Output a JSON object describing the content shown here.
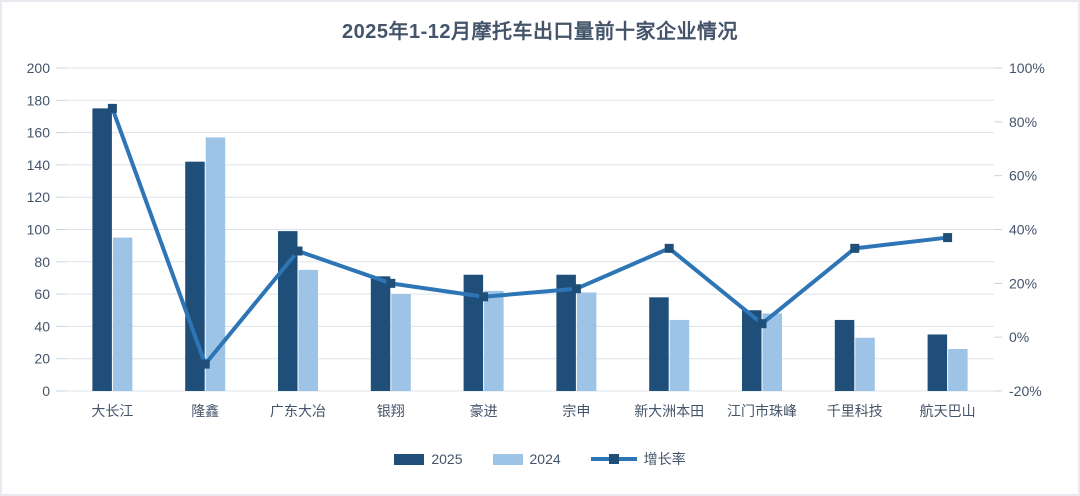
{
  "window": {
    "background": "#ffffff",
    "border_color": "#e7ebf0"
  },
  "chart_data": {
    "type": "bar",
    "subtype": "combo-bar-line",
    "title": "2025年1-12月摩托车出口量前十家企业情况",
    "categories": [
      "大长江",
      "隆鑫",
      "广东大冶",
      "银翔",
      "豪进",
      "宗申",
      "新大洲本田",
      "江门市珠峰",
      "千里科技",
      "航天巴山"
    ],
    "series": [
      {
        "name": "2025",
        "type": "bar",
        "axis": "left",
        "color": "#1F4E79",
        "values": [
          175,
          142,
          99,
          71,
          72,
          72,
          58,
          50,
          44,
          35
        ]
      },
      {
        "name": "2024",
        "type": "bar",
        "axis": "left",
        "color": "#9DC3E6",
        "values": [
          95,
          157,
          75,
          60,
          62,
          61,
          44,
          48,
          33,
          26
        ]
      },
      {
        "name": "增长率",
        "type": "line",
        "axis": "right",
        "color": "#2E75B6",
        "marker_color": "#1F4E79",
        "marker_shape": "square",
        "values_percent": [
          85,
          -10,
          32,
          20,
          15,
          18,
          33,
          5,
          33,
          37
        ]
      }
    ],
    "left_axis": {
      "min": 0,
      "max": 200,
      "step": 20,
      "tick_labels": [
        "0",
        "20",
        "40",
        "60",
        "80",
        "100",
        "120",
        "140",
        "160",
        "180",
        "200"
      ]
    },
    "right_axis": {
      "min": -20,
      "max": 100,
      "step": 20,
      "suffix": "%",
      "tick_labels": [
        "-20%",
        "0%",
        "20%",
        "40%",
        "60%",
        "80%",
        "100%"
      ]
    },
    "grid": true,
    "grid_color": "#dce3ea",
    "tick_color": "#c9d3dd",
    "text_color": "#44546A",
    "legend_position": "bottom"
  }
}
